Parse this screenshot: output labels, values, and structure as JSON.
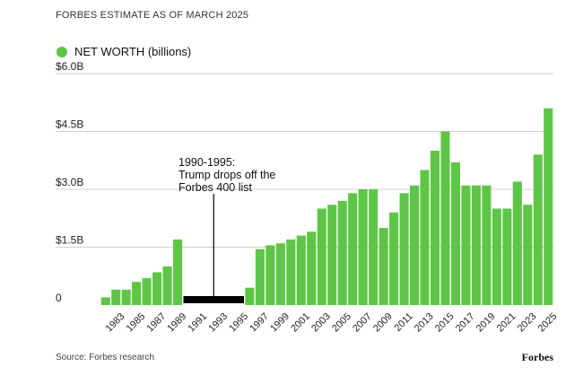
{
  "supertitle": "FORBES ESTIMATE AS OF MARCH 2025",
  "source": "Source: Forbes research",
  "brand": "Forbes",
  "annotation": {
    "lines": [
      "1990-1995:",
      "Trump drops off the",
      "Forbes 400 list"
    ]
  },
  "chart_data": {
    "type": "bar",
    "title": "",
    "xlabel": "",
    "ylabel": "",
    "legend": {
      "label": "NET WORTH (billions)",
      "placement": "top-left"
    },
    "colors": {
      "series": "#5ec646",
      "gap_bar": "#000000",
      "grid": "#cfcfcf"
    },
    "ylim": [
      0,
      6.0
    ],
    "yticks": [
      {
        "value": 0,
        "label": "0"
      },
      {
        "value": 1.5,
        "label": "$1.5B"
      },
      {
        "value": 3.0,
        "label": "$3.0B"
      },
      {
        "value": 4.5,
        "label": "$4.5B"
      },
      {
        "value": 6.0,
        "label": "$6.0B"
      }
    ],
    "grid": true,
    "categories": [
      "1982",
      "1983",
      "1984",
      "1985",
      "1986",
      "1987",
      "1988",
      "1989",
      "1990",
      "1991",
      "1992",
      "1993",
      "1994",
      "1995",
      "1996",
      "1997",
      "1998",
      "1999",
      "2000",
      "2001",
      "2002",
      "2003",
      "2004",
      "2005",
      "2006",
      "2007",
      "2008",
      "2009",
      "2010",
      "2011",
      "2012",
      "2013",
      "2014",
      "2015",
      "2016",
      "2017",
      "2018",
      "2019",
      "2020",
      "2021",
      "2022",
      "2023",
      "2024",
      "2025"
    ],
    "x_tick_labels": [
      "1983",
      "1985",
      "1987",
      "1989",
      "1991",
      "1993",
      "1995",
      "1997",
      "1999",
      "2001",
      "2003",
      "2005",
      "2007",
      "2009",
      "2011",
      "2013",
      "2015",
      "2017",
      "2019",
      "2021",
      "2023",
      "2025"
    ],
    "values": [
      0.2,
      0.4,
      0.4,
      0.6,
      0.7,
      0.85,
      1.0,
      1.7,
      null,
      null,
      null,
      null,
      null,
      null,
      0.45,
      1.45,
      1.55,
      1.6,
      1.7,
      1.8,
      1.9,
      2.5,
      2.6,
      2.7,
      2.9,
      3.0,
      3.0,
      2.0,
      2.4,
      2.9,
      3.1,
      3.5,
      4.0,
      4.5,
      3.7,
      3.1,
      3.1,
      3.1,
      2.5,
      2.5,
      3.2,
      2.6,
      3.9,
      5.1
    ],
    "off_list_range": [
      "1990",
      "1995"
    ]
  }
}
